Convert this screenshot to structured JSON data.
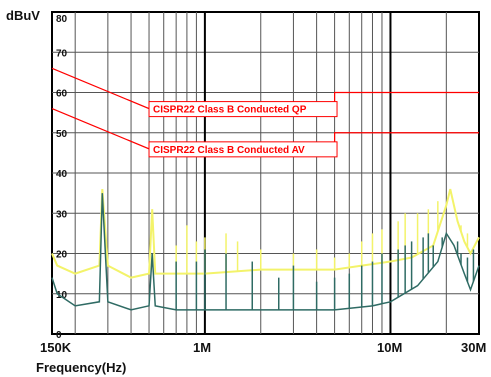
{
  "chart_data": {
    "type": "line",
    "ylabel": "dBuV",
    "xlabel": "Frequency(Hz)",
    "x_scale": "log",
    "xlim_hz": [
      150000,
      30000000
    ],
    "ylim": [
      0,
      80
    ],
    "y_ticks": [
      0,
      10,
      20,
      30,
      40,
      50,
      60,
      70,
      80
    ],
    "y_tick_labels": [
      "0",
      "10",
      "20",
      "30",
      "40",
      "50",
      "60",
      "70",
      "80"
    ],
    "x_tick_labels": [
      {
        "hz": 150000,
        "label": "150K"
      },
      {
        "hz": 1000000,
        "label": "1M"
      },
      {
        "hz": 10000000,
        "label": "10M"
      },
      {
        "hz": 30000000,
        "label": "30M"
      }
    ],
    "grid": true,
    "limit_lines": [
      {
        "name": "CISPR22 Class B Conducted QP",
        "color": "#ff0000",
        "points": [
          [
            150000,
            66
          ],
          [
            500000,
            56
          ],
          [
            5000000,
            56
          ],
          [
            5000000,
            60
          ],
          [
            30000000,
            60
          ]
        ]
      },
      {
        "name": "CISPR22 Class B Conducted AV",
        "color": "#ff0000",
        "points": [
          [
            150000,
            56
          ],
          [
            500000,
            46
          ],
          [
            5000000,
            46
          ],
          [
            5000000,
            50
          ],
          [
            30000000,
            50
          ]
        ]
      }
    ],
    "series": [
      {
        "color": "#f3f36a",
        "points": [
          [
            150000,
            20
          ],
          [
            160000,
            17
          ],
          [
            200000,
            15
          ],
          [
            270000,
            17
          ],
          [
            280000,
            36
          ],
          [
            300000,
            17
          ],
          [
            400000,
            14
          ],
          [
            500000,
            15
          ],
          [
            520000,
            31
          ],
          [
            540000,
            15
          ],
          [
            700000,
            15
          ],
          [
            1000000,
            15
          ],
          [
            2000000,
            16
          ],
          [
            3000000,
            16
          ],
          [
            5000000,
            16
          ],
          [
            7000000,
            17
          ],
          [
            10000000,
            18
          ],
          [
            13000000,
            19
          ],
          [
            17000000,
            22
          ],
          [
            20000000,
            32
          ],
          [
            21000000,
            36
          ],
          [
            23000000,
            28
          ],
          [
            25000000,
            23
          ],
          [
            27000000,
            20
          ],
          [
            30000000,
            24
          ]
        ],
        "spikes": [
          [
            520000,
            31
          ],
          [
            700000,
            22
          ],
          [
            800000,
            27
          ],
          [
            900000,
            23
          ],
          [
            1000000,
            24
          ],
          [
            1300000,
            25
          ],
          [
            1500000,
            23
          ],
          [
            2000000,
            21
          ],
          [
            3000000,
            20
          ],
          [
            4000000,
            21
          ],
          [
            5000000,
            19
          ],
          [
            6000000,
            20
          ],
          [
            7000000,
            23
          ],
          [
            8000000,
            25
          ],
          [
            9000000,
            26
          ],
          [
            11000000,
            28
          ],
          [
            12000000,
            30
          ],
          [
            14000000,
            30
          ],
          [
            16000000,
            31
          ],
          [
            18000000,
            33
          ],
          [
            24000000,
            27
          ],
          [
            26000000,
            25
          ]
        ]
      },
      {
        "color": "#2f6b64",
        "points": [
          [
            150000,
            14
          ],
          [
            160000,
            10
          ],
          [
            200000,
            7
          ],
          [
            270000,
            8
          ],
          [
            280000,
            35
          ],
          [
            300000,
            8
          ],
          [
            400000,
            6
          ],
          [
            500000,
            7
          ],
          [
            520000,
            20
          ],
          [
            540000,
            7
          ],
          [
            700000,
            6
          ],
          [
            1000000,
            6
          ],
          [
            2000000,
            6
          ],
          [
            5000000,
            6
          ],
          [
            8000000,
            7
          ],
          [
            10000000,
            8
          ],
          [
            14000000,
            12
          ],
          [
            18000000,
            18
          ],
          [
            20000000,
            25
          ],
          [
            22000000,
            22
          ],
          [
            25000000,
            15
          ],
          [
            27000000,
            11
          ],
          [
            30000000,
            17
          ]
        ],
        "spikes": [
          [
            520000,
            20
          ],
          [
            700000,
            18
          ],
          [
            900000,
            18
          ],
          [
            1000000,
            21
          ],
          [
            1300000,
            20
          ],
          [
            1800000,
            18
          ],
          [
            2500000,
            14
          ],
          [
            3000000,
            17
          ],
          [
            4000000,
            13
          ],
          [
            5000000,
            14
          ],
          [
            6000000,
            15
          ],
          [
            7000000,
            17
          ],
          [
            8000000,
            18
          ],
          [
            9000000,
            20
          ],
          [
            11000000,
            21
          ],
          [
            12000000,
            22
          ],
          [
            13000000,
            23
          ],
          [
            15000000,
            24
          ],
          [
            16000000,
            25
          ],
          [
            17000000,
            22
          ],
          [
            19000000,
            24
          ],
          [
            23000000,
            23
          ],
          [
            24000000,
            20
          ],
          [
            26000000,
            19
          ],
          [
            28000000,
            21
          ]
        ]
      }
    ],
    "annotations": [
      "CISPR22 Class B Conducted QP",
      "CISPR22 Class B Conducted AV"
    ]
  },
  "labels": {
    "unit": "dBuV",
    "xlabel": "Frequency(Hz)",
    "x150k": "150K",
    "x1m": "1M",
    "x10m": "10M",
    "x30m": "30M"
  }
}
